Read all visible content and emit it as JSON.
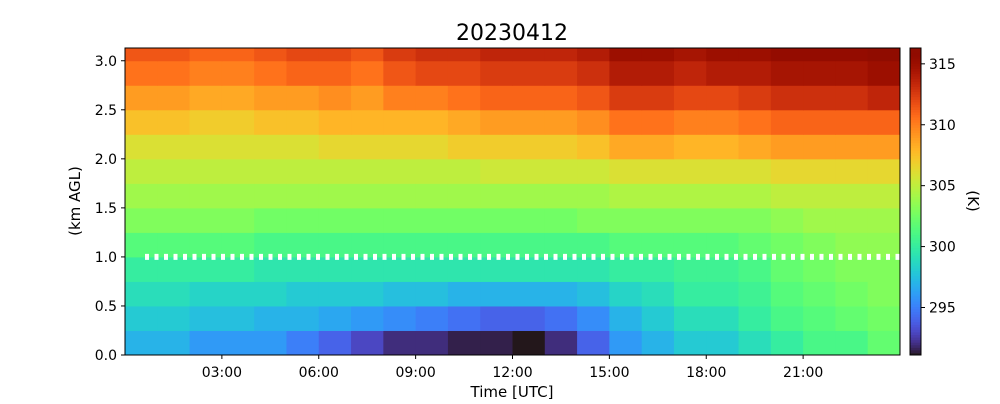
{
  "chart_data": {
    "type": "heatmap",
    "title": "20230412",
    "x_label": "Time [UTC]",
    "y_label": "(km AGL)",
    "colorbar_label": "(K)",
    "colormap": "turbo",
    "x_bins": [
      0,
      1,
      2,
      3,
      4,
      5,
      6,
      7,
      8,
      9,
      10,
      11,
      12,
      13,
      14,
      15,
      16,
      17,
      18,
      19,
      20,
      21,
      22,
      23,
      24
    ],
    "y_bins": [
      0,
      0.25,
      0.5,
      0.75,
      1.0,
      1.25,
      1.5,
      1.75,
      2.0,
      2.25,
      2.5,
      2.75,
      3.0,
      3.13
    ],
    "values": [
      [
        297,
        297,
        296,
        296,
        296,
        295,
        294,
        293,
        292,
        292,
        291.5,
        291.5,
        291,
        292,
        294,
        296,
        297,
        298,
        298,
        299,
        300,
        301,
        301,
        302
      ],
      [
        298,
        298,
        297.5,
        297.5,
        297,
        297,
        296.5,
        296,
        295.5,
        295,
        294.5,
        294,
        294,
        294.5,
        295.5,
        297,
        298,
        299,
        299,
        300,
        301,
        301.5,
        302,
        302.5
      ],
      [
        299,
        299,
        298.5,
        298.5,
        298.5,
        298,
        298,
        298,
        297.5,
        297.5,
        297,
        297,
        297,
        297,
        297.5,
        298.5,
        299,
        300,
        300,
        300.5,
        301.5,
        302,
        302.5,
        303
      ],
      [
        300,
        300,
        300,
        300,
        299.5,
        299.5,
        299.5,
        299.5,
        299.5,
        299.5,
        299.5,
        299.5,
        299.5,
        299.5,
        299.5,
        300,
        300,
        300.5,
        300.5,
        301,
        302,
        302.5,
        303,
        303
      ],
      [
        301.5,
        301.5,
        301.5,
        301.5,
        301,
        301,
        301,
        301,
        301,
        301,
        301,
        301,
        301,
        301,
        301,
        301.5,
        301.5,
        301.5,
        301.5,
        302,
        302.5,
        303,
        303.5,
        303.5
      ],
      [
        303,
        303,
        303,
        303,
        302.5,
        302.5,
        302.5,
        302.5,
        302.5,
        302.5,
        302.5,
        302.5,
        302.5,
        302.5,
        303,
        303,
        303,
        303,
        303,
        303,
        303.5,
        304,
        304,
        304
      ],
      [
        304,
        304,
        304,
        304,
        304,
        304,
        304,
        304,
        304,
        304,
        304,
        304,
        304,
        304,
        304,
        304.5,
        304.5,
        304.5,
        304.5,
        304.5,
        305,
        305,
        305,
        305
      ],
      [
        305,
        305,
        305,
        305,
        305,
        305,
        305,
        305,
        305,
        305,
        305,
        305.5,
        305.5,
        305.5,
        305.5,
        306,
        306,
        306,
        306,
        306,
        306.5,
        306.5,
        306.5,
        306.5
      ],
      [
        306,
        306,
        306,
        306,
        306,
        306,
        306.5,
        306.5,
        306.5,
        306.5,
        307,
        307,
        307,
        307,
        307.5,
        308.5,
        308.5,
        308,
        308,
        308.5,
        309,
        309,
        309,
        309
      ],
      [
        307.5,
        307.5,
        307,
        307,
        307.5,
        307.5,
        308,
        308,
        308,
        308,
        308.5,
        309,
        309,
        309,
        309.5,
        310.5,
        310.5,
        310,
        310,
        310.5,
        311,
        311,
        311,
        311
      ],
      [
        309,
        309,
        308.5,
        308.5,
        309,
        309,
        309.5,
        309,
        310,
        310,
        310.5,
        311,
        311,
        311,
        311.5,
        312.5,
        312.5,
        312,
        312,
        312.5,
        313,
        313,
        313,
        313.5
      ],
      [
        310.5,
        310.5,
        310,
        310,
        310.5,
        311,
        311,
        310.5,
        311.5,
        312,
        312,
        312.5,
        312.5,
        312.5,
        313,
        314,
        314,
        313.5,
        314,
        314,
        314.5,
        314.5,
        314.5,
        315
      ],
      [
        311.5,
        311.5,
        311,
        311,
        311.5,
        312,
        312,
        311.5,
        312.5,
        313,
        313,
        313.5,
        313.5,
        313.5,
        314,
        315,
        315,
        314.5,
        315,
        315,
        315.5,
        315.5,
        315.5,
        316
      ]
    ],
    "xlim": [
      0,
      24
    ],
    "ylim": [
      0,
      3.13
    ],
    "zlim": [
      291.1,
      316.3
    ],
    "xticks": [
      {
        "value": 3,
        "label": "03:00"
      },
      {
        "value": 6,
        "label": "06:00"
      },
      {
        "value": 9,
        "label": "09:00"
      },
      {
        "value": 12,
        "label": "12:00"
      },
      {
        "value": 15,
        "label": "15:00"
      },
      {
        "value": 18,
        "label": "18:00"
      },
      {
        "value": 21,
        "label": "21:00"
      }
    ],
    "yticks": [
      {
        "value": 0,
        "label": "0.0"
      },
      {
        "value": 0.5,
        "label": "0.5"
      },
      {
        "value": 1,
        "label": "1.0"
      },
      {
        "value": 1.5,
        "label": "1.5"
      },
      {
        "value": 2,
        "label": "2.0"
      },
      {
        "value": 2.5,
        "label": "2.5"
      },
      {
        "value": 3,
        "label": "3.0"
      }
    ],
    "zticks": [
      295,
      300,
      305,
      310,
      315
    ],
    "reference_line": {
      "y": 1.0,
      "color": "#ffffff"
    }
  }
}
